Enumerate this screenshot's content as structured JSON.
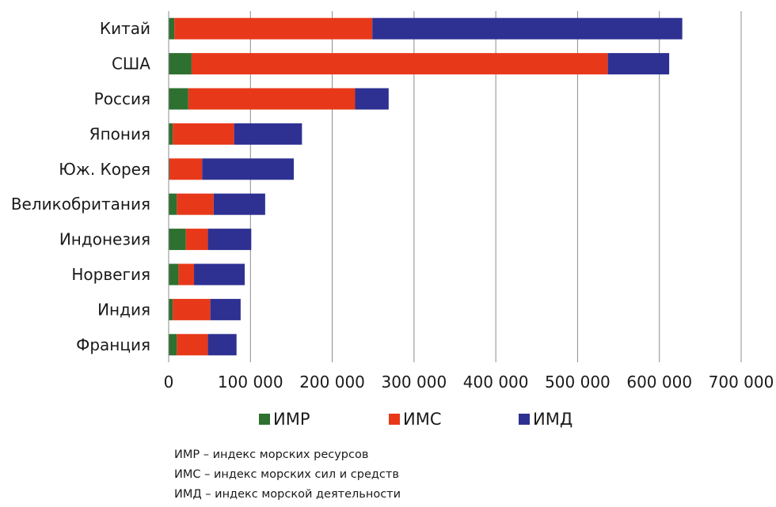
{
  "chart_data": {
    "type": "bar",
    "orientation": "horizontal",
    "stacked": true,
    "title": "",
    "xlabel": "",
    "ylabel": "",
    "xlim": [
      0,
      700000
    ],
    "x_ticks": [
      0,
      100000,
      200000,
      300000,
      400000,
      500000,
      600000,
      700000
    ],
    "x_tick_labels": [
      "0",
      "100 000",
      "200 000",
      "300 000",
      "400 000",
      "500 000",
      "600 000",
      "700 000"
    ],
    "grid": "vertical",
    "legend_position": "bottom",
    "categories": [
      "Китай",
      "США",
      "Россия",
      "Япония",
      "Юж. Корея",
      "Великобритания",
      "Индонезия",
      "Норвегия",
      "Индия",
      "Франция"
    ],
    "series": [
      {
        "name": "ИМР",
        "color": "#2d7030",
        "values": [
          7000,
          28000,
          24000,
          5000,
          1000,
          10000,
          21000,
          12000,
          5000,
          10000
        ]
      },
      {
        "name": "ИМС",
        "color": "#e8381a",
        "values": [
          242000,
          509000,
          204000,
          75000,
          40000,
          45000,
          27000,
          19000,
          46000,
          38000
        ]
      },
      {
        "name": "ИМД",
        "color": "#2e3192",
        "values": [
          379000,
          75000,
          41000,
          83000,
          112000,
          63000,
          53000,
          62000,
          37000,
          35000
        ]
      }
    ]
  },
  "notes": [
    "ИМР – индекс морских ресурсов",
    "ИМС – индекс морских сил и средств",
    "ИМД – индекс морской деятельности"
  ]
}
